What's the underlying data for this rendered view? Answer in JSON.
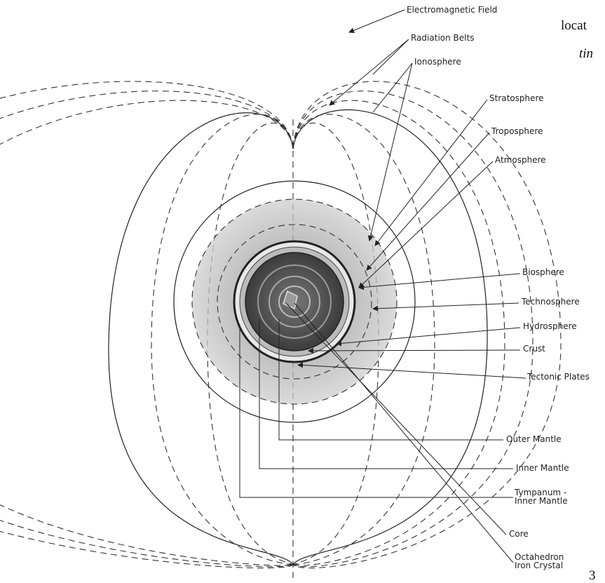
{
  "labels": [
    {
      "lines": [
        "Electromagnetic Field"
      ]
    },
    {
      "lines": [
        "Radiation Belts"
      ]
    },
    {
      "lines": [
        "Ionosphere"
      ]
    },
    {
      "lines": [
        "Stratosphere"
      ]
    },
    {
      "lines": [
        "Troposphere"
      ]
    },
    {
      "lines": [
        "Atmosphere"
      ]
    },
    {
      "lines": [
        "Biosphere"
      ]
    },
    {
      "lines": [
        "Technosphere"
      ]
    },
    {
      "lines": [
        "Hydrosphere"
      ]
    },
    {
      "lines": [
        "Crust"
      ]
    },
    {
      "lines": [
        "Tectonic Plates"
      ]
    },
    {
      "lines": [
        "Outer Mantle"
      ]
    },
    {
      "lines": [
        "Inner Mantle"
      ]
    },
    {
      "lines": [
        "Tympanum -",
        "Inner Mantle"
      ]
    },
    {
      "lines": [
        "Core"
      ]
    },
    {
      "lines": [
        "Octahedron",
        "Iron Crystal"
      ]
    }
  ],
  "page_fragments": {
    "top": "locat",
    "italic": "tin",
    "page_number": "3"
  }
}
